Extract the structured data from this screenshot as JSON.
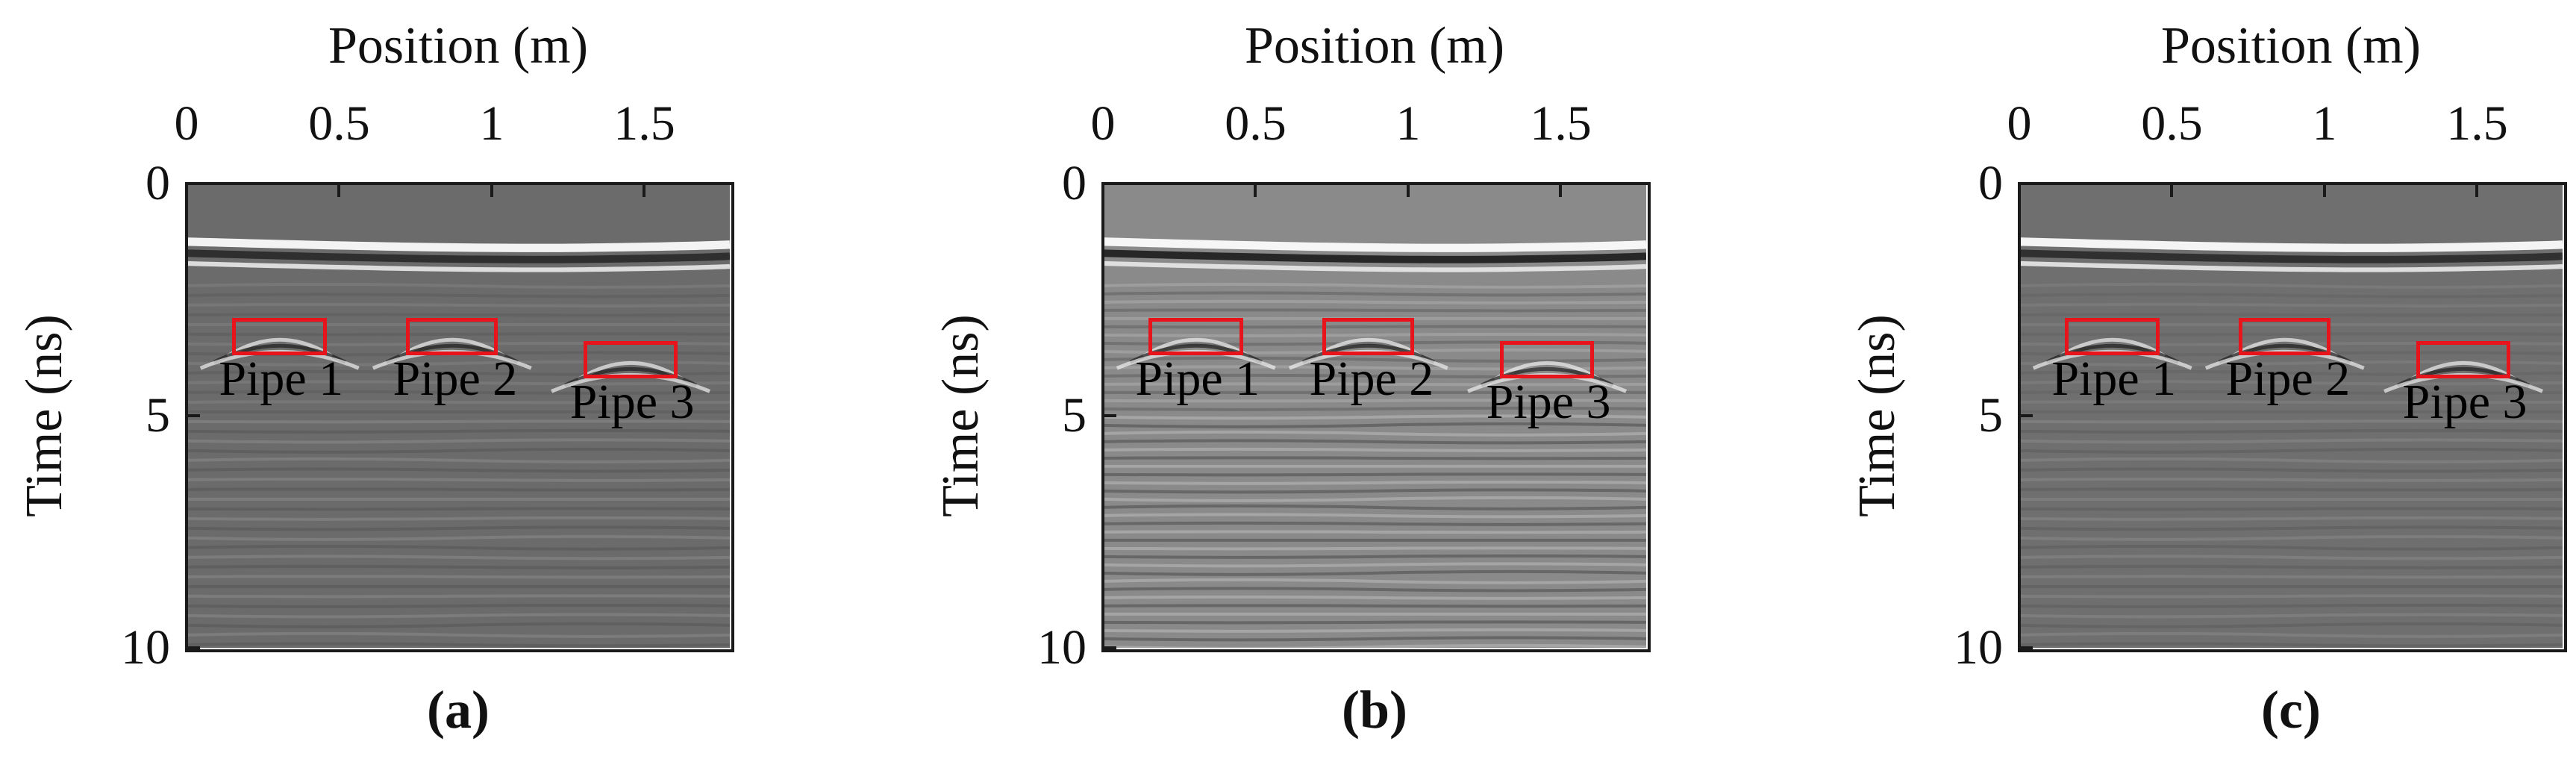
{
  "figure": {
    "panels": [
      {
        "caption": "(a)",
        "xlabel": "Position (m)",
        "ylabel": "Time (ns)",
        "xticks": [
          "0",
          "0.5",
          "1",
          "1.5"
        ],
        "yticks": [
          "0",
          "5",
          "10"
        ],
        "pipes": [
          "Pipe 1",
          "Pipe 2",
          "Pipe 3"
        ]
      },
      {
        "caption": "(b)",
        "xlabel": "Position (m)",
        "ylabel": "Time (ns)",
        "xticks": [
          "0",
          "0.5",
          "1",
          "1.5"
        ],
        "yticks": [
          "0",
          "5",
          "10"
        ],
        "pipes": [
          "Pipe 1",
          "Pipe 2",
          "Pipe 3"
        ]
      },
      {
        "caption": "(c)",
        "xlabel": "Position (m)",
        "ylabel": "Time (ns)",
        "xticks": [
          "0",
          "0.5",
          "1",
          "1.5"
        ],
        "yticks": [
          "0",
          "5",
          "10"
        ],
        "pipes": [
          "Pipe 1",
          "Pipe 2",
          "Pipe 3"
        ]
      }
    ]
  },
  "chart_data": [
    {
      "type": "heatmap",
      "colormap": "gray",
      "xlabel": "Position (m)",
      "ylabel": "Time (ns)",
      "xlim": [
        0,
        1.78
      ],
      "ylim": [
        0,
        10
      ],
      "y_reversed": true,
      "xticks": [
        0,
        0.5,
        1,
        1.5
      ],
      "yticks": [
        0,
        5,
        10
      ],
      "annotations": [
        {
          "label": "Pipe 1",
          "x_range": [
            0.15,
            0.46
          ],
          "t_range": [
            2.9,
            3.7
          ]
        },
        {
          "label": "Pipe 2",
          "x_range": [
            0.72,
            1.02
          ],
          "t_range": [
            2.9,
            3.7
          ]
        },
        {
          "label": "Pipe 3",
          "x_range": [
            1.3,
            1.61
          ],
          "t_range": [
            3.4,
            4.2
          ]
        }
      ],
      "caption": "(a)"
    },
    {
      "type": "heatmap",
      "colormap": "gray",
      "xlabel": "Position (m)",
      "ylabel": "Time (ns)",
      "xlim": [
        0,
        1.78
      ],
      "ylim": [
        0,
        10
      ],
      "y_reversed": true,
      "xticks": [
        0,
        0.5,
        1,
        1.5
      ],
      "yticks": [
        0,
        5,
        10
      ],
      "annotations": [
        {
          "label": "Pipe 1",
          "x_range": [
            0.15,
            0.46
          ],
          "t_range": [
            2.9,
            3.7
          ]
        },
        {
          "label": "Pipe 2",
          "x_range": [
            0.72,
            1.02
          ],
          "t_range": [
            2.9,
            3.7
          ]
        },
        {
          "label": "Pipe 3",
          "x_range": [
            1.3,
            1.61
          ],
          "t_range": [
            3.4,
            4.2
          ]
        }
      ],
      "caption": "(b)"
    },
    {
      "type": "heatmap",
      "colormap": "gray",
      "xlabel": "Position (m)",
      "ylabel": "Time (ns)",
      "xlim": [
        0,
        1.78
      ],
      "ylim": [
        0,
        10
      ],
      "y_reversed": true,
      "xticks": [
        0,
        0.5,
        1,
        1.5
      ],
      "yticks": [
        0,
        5,
        10
      ],
      "annotations": [
        {
          "label": "Pipe 1",
          "x_range": [
            0.15,
            0.46
          ],
          "t_range": [
            2.9,
            3.7
          ]
        },
        {
          "label": "Pipe 2",
          "x_range": [
            0.72,
            1.02
          ],
          "t_range": [
            2.9,
            3.7
          ]
        },
        {
          "label": "Pipe 3",
          "x_range": [
            1.3,
            1.61
          ],
          "t_range": [
            3.4,
            4.2
          ]
        }
      ],
      "caption": "(c)"
    }
  ],
  "colors": {
    "annotation_box": "#e8141c",
    "frame": "#1a1a1a"
  }
}
